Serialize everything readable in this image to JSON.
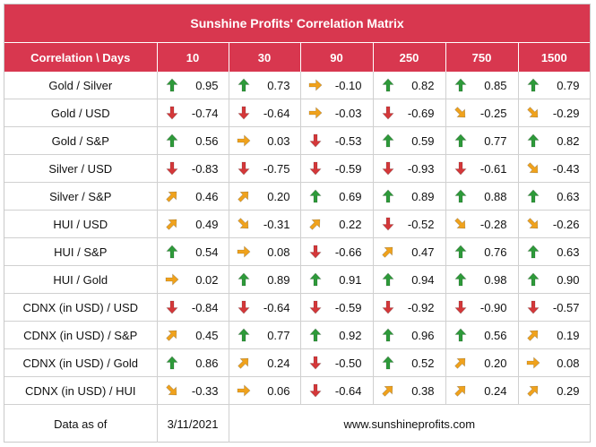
{
  "title": "Sunshine Profits' Correlation Matrix",
  "header": {
    "label": "Correlation \\ Days",
    "periods": [
      "10",
      "30",
      "90",
      "250",
      "750",
      "1500"
    ]
  },
  "colors": {
    "header_bg": "#d8374f",
    "arrow_up": "#2e9a3a",
    "arrow_down": "#d4383a",
    "arrow_flat": "#f0a21c",
    "arrow_diag": "#f0a21c"
  },
  "rows": [
    {
      "pair": "Gold / Silver",
      "cells": [
        {
          "arrow": "up",
          "value": "0.95"
        },
        {
          "arrow": "up",
          "value": "0.73"
        },
        {
          "arrow": "right",
          "value": "-0.10"
        },
        {
          "arrow": "up",
          "value": "0.82"
        },
        {
          "arrow": "up",
          "value": "0.85"
        },
        {
          "arrow": "up",
          "value": "0.79"
        }
      ]
    },
    {
      "pair": "Gold / USD",
      "cells": [
        {
          "arrow": "down",
          "value": "-0.74"
        },
        {
          "arrow": "down",
          "value": "-0.64"
        },
        {
          "arrow": "right",
          "value": "-0.03"
        },
        {
          "arrow": "down",
          "value": "-0.69"
        },
        {
          "arrow": "down-right",
          "value": "-0.25"
        },
        {
          "arrow": "down-right",
          "value": "-0.29"
        }
      ]
    },
    {
      "pair": "Gold / S&P",
      "cells": [
        {
          "arrow": "up",
          "value": "0.56"
        },
        {
          "arrow": "right",
          "value": "0.03"
        },
        {
          "arrow": "down",
          "value": "-0.53"
        },
        {
          "arrow": "up",
          "value": "0.59"
        },
        {
          "arrow": "up",
          "value": "0.77"
        },
        {
          "arrow": "up",
          "value": "0.82"
        }
      ]
    },
    {
      "pair": "Silver / USD",
      "cells": [
        {
          "arrow": "down",
          "value": "-0.83"
        },
        {
          "arrow": "down",
          "value": "-0.75"
        },
        {
          "arrow": "down",
          "value": "-0.59"
        },
        {
          "arrow": "down",
          "value": "-0.93"
        },
        {
          "arrow": "down",
          "value": "-0.61"
        },
        {
          "arrow": "down-right",
          "value": "-0.43"
        }
      ]
    },
    {
      "pair": "Silver / S&P",
      "cells": [
        {
          "arrow": "up-right",
          "value": "0.46"
        },
        {
          "arrow": "up-right",
          "value": "0.20"
        },
        {
          "arrow": "up",
          "value": "0.69"
        },
        {
          "arrow": "up",
          "value": "0.89"
        },
        {
          "arrow": "up",
          "value": "0.88"
        },
        {
          "arrow": "up",
          "value": "0.63"
        }
      ]
    },
    {
      "pair": "HUI / USD",
      "cells": [
        {
          "arrow": "up-right",
          "value": "0.49"
        },
        {
          "arrow": "down-right",
          "value": "-0.31"
        },
        {
          "arrow": "up-right",
          "value": "0.22"
        },
        {
          "arrow": "down",
          "value": "-0.52"
        },
        {
          "arrow": "down-right",
          "value": "-0.28"
        },
        {
          "arrow": "down-right",
          "value": "-0.26"
        }
      ]
    },
    {
      "pair": "HUI / S&P",
      "cells": [
        {
          "arrow": "up",
          "value": "0.54"
        },
        {
          "arrow": "right",
          "value": "0.08"
        },
        {
          "arrow": "down",
          "value": "-0.66"
        },
        {
          "arrow": "up-right",
          "value": "0.47"
        },
        {
          "arrow": "up",
          "value": "0.76"
        },
        {
          "arrow": "up",
          "value": "0.63"
        }
      ]
    },
    {
      "pair": "HUI / Gold",
      "cells": [
        {
          "arrow": "right",
          "value": "0.02"
        },
        {
          "arrow": "up",
          "value": "0.89"
        },
        {
          "arrow": "up",
          "value": "0.91"
        },
        {
          "arrow": "up",
          "value": "0.94"
        },
        {
          "arrow": "up",
          "value": "0.98"
        },
        {
          "arrow": "up",
          "value": "0.90"
        }
      ]
    },
    {
      "pair": "CDNX (in USD) / USD",
      "cells": [
        {
          "arrow": "down",
          "value": "-0.84"
        },
        {
          "arrow": "down",
          "value": "-0.64"
        },
        {
          "arrow": "down",
          "value": "-0.59"
        },
        {
          "arrow": "down",
          "value": "-0.92"
        },
        {
          "arrow": "down",
          "value": "-0.90"
        },
        {
          "arrow": "down",
          "value": "-0.57"
        }
      ]
    },
    {
      "pair": "CDNX (in USD) / S&P",
      "cells": [
        {
          "arrow": "up-right",
          "value": "0.45"
        },
        {
          "arrow": "up",
          "value": "0.77"
        },
        {
          "arrow": "up",
          "value": "0.92"
        },
        {
          "arrow": "up",
          "value": "0.96"
        },
        {
          "arrow": "up",
          "value": "0.56"
        },
        {
          "arrow": "up-right",
          "value": "0.19"
        }
      ]
    },
    {
      "pair": "CDNX (in USD) / Gold",
      "cells": [
        {
          "arrow": "up",
          "value": "0.86"
        },
        {
          "arrow": "up-right",
          "value": "0.24"
        },
        {
          "arrow": "down",
          "value": "-0.50"
        },
        {
          "arrow": "up",
          "value": "0.52"
        },
        {
          "arrow": "up-right",
          "value": "0.20"
        },
        {
          "arrow": "right",
          "value": "0.08"
        }
      ]
    },
    {
      "pair": "CDNX (in USD) / HUI",
      "cells": [
        {
          "arrow": "down-right",
          "value": "-0.33"
        },
        {
          "arrow": "right",
          "value": "0.06"
        },
        {
          "arrow": "down",
          "value": "-0.64"
        },
        {
          "arrow": "up-right",
          "value": "0.38"
        },
        {
          "arrow": "up-right",
          "value": "0.24"
        },
        {
          "arrow": "up-right",
          "value": "0.29"
        }
      ]
    }
  ],
  "footer": {
    "label": "Data as of",
    "date": "3/11/2021",
    "website": "www.sunshineprofits.com"
  }
}
